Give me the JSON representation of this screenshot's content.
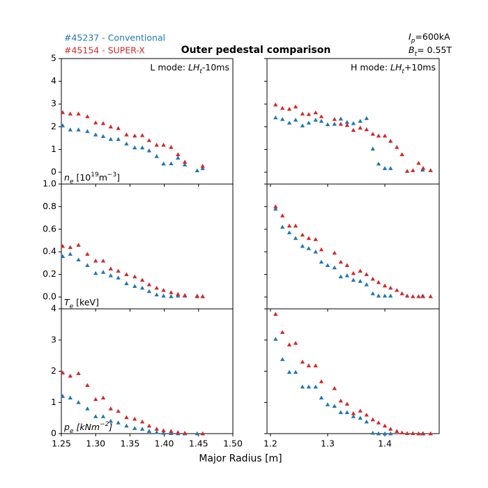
{
  "title": "Outer pedestal comparison",
  "xlabel": "Major Radius [m]",
  "plasma_current": [
    "I",
    "p",
    "=600kA"
  ],
  "toroidal_field": [
    "B",
    "t",
    "= 0.55T"
  ],
  "chart_data": [
    {
      "type": "scatter",
      "xlim": [
        1.25,
        1.5
      ],
      "ylim": [
        -0.52,
        5
      ],
      "yticks": [
        0,
        1,
        2,
        3,
        4,
        5
      ],
      "annotation": [
        "L mode: ",
        "LH",
        "t",
        "-10ms"
      ],
      "ylabel": [
        "n",
        "e",
        " [10",
        "19",
        "m",
        "−3",
        "]"
      ],
      "series": [
        {
          "name": "#45237 - Conventional",
          "color": "#1f77b4",
          "x": [
            1.252,
            1.263,
            1.275,
            1.288,
            1.3,
            1.311,
            1.322,
            1.333,
            1.345,
            1.357,
            1.368,
            1.378,
            1.389,
            1.399,
            1.41,
            1.42,
            1.43,
            1.448,
            1.456
          ],
          "values": [
            2.05,
            1.87,
            1.87,
            1.8,
            1.65,
            1.58,
            1.45,
            1.45,
            1.25,
            1.08,
            1.08,
            0.95,
            0.7,
            0.37,
            0.38,
            0.63,
            0.33,
            0.07,
            0.17
          ]
        },
        {
          "name": "#45154 - SUPER-X",
          "color": "#d62728",
          "x": [
            1.252,
            1.263,
            1.275,
            1.288,
            1.3,
            1.311,
            1.322,
            1.333,
            1.345,
            1.357,
            1.368,
            1.378,
            1.389,
            1.399,
            1.41,
            1.42,
            1.43,
            1.456
          ],
          "values": [
            2.63,
            2.57,
            2.57,
            2.45,
            2.18,
            2.15,
            2.0,
            1.93,
            1.65,
            1.6,
            1.62,
            1.4,
            1.2,
            1.2,
            1.1,
            0.78,
            0.45,
            0.27
          ]
        }
      ]
    },
    {
      "type": "scatter",
      "xlim": [
        1.194,
        1.495
      ],
      "ylim": [
        -0.52,
        5
      ],
      "annotation": [
        "H mode: ",
        "LH",
        "t",
        "+10ms"
      ],
      "series": [
        {
          "color": "#1f77b4",
          "x": [
            1.209,
            1.221,
            1.233,
            1.244,
            1.256,
            1.267,
            1.279,
            1.289,
            1.3,
            1.312,
            1.323,
            1.334,
            1.345,
            1.357,
            1.368,
            1.379,
            1.389,
            1.4,
            1.41,
            1.466
          ],
          "values": [
            2.4,
            2.33,
            2.17,
            2.3,
            2.05,
            2.17,
            2.3,
            2.25,
            2.1,
            2.12,
            2.35,
            2.2,
            2.15,
            2.25,
            2.37,
            1.03,
            0.37,
            0.17,
            0.17,
            0.1
          ]
        },
        {
          "color": "#d62728",
          "x": [
            1.209,
            1.221,
            1.233,
            1.244,
            1.256,
            1.267,
            1.279,
            1.289,
            1.312,
            1.323,
            1.334,
            1.345,
            1.357,
            1.368,
            1.379,
            1.389,
            1.4,
            1.41,
            1.421,
            1.43,
            1.439,
            1.449,
            1.459,
            1.467,
            1.48
          ],
          "values": [
            2.97,
            2.82,
            2.78,
            2.88,
            2.57,
            2.55,
            2.62,
            2.45,
            2.33,
            2.12,
            2.07,
            1.85,
            1.95,
            1.88,
            1.68,
            1.6,
            1.6,
            1.37,
            1.1,
            0.78,
            0.05,
            0.08,
            0.4,
            0.18,
            0.08
          ]
        }
      ]
    },
    {
      "type": "scatter",
      "xlim": [
        1.25,
        1.5
      ],
      "ylim": [
        -0.105,
        1.0
      ],
      "yticks": [
        {
          "value": 0,
          "label": "0.0"
        },
        0.2,
        0.4,
        0.6,
        0.8,
        {
          "value": 1,
          "label": "1.0"
        }
      ],
      "ylabel": [
        "T",
        "e",
        " [keV]"
      ],
      "series": [
        {
          "color": "#1f77b4",
          "x": [
            1.252,
            1.263,
            1.275,
            1.288,
            1.3,
            1.311,
            1.322,
            1.333,
            1.345,
            1.357,
            1.368,
            1.378,
            1.389,
            1.399,
            1.41,
            1.42,
            1.43,
            1.448,
            1.456
          ],
          "values": [
            0.36,
            0.38,
            0.33,
            0.28,
            0.21,
            0.22,
            0.19,
            0.17,
            0.12,
            0.095,
            0.08,
            0.05,
            0.02,
            0.01,
            0.005,
            0.01,
            0.01,
            0.01,
            0.005
          ]
        },
        {
          "color": "#d62728",
          "x": [
            1.252,
            1.263,
            1.275,
            1.288,
            1.3,
            1.311,
            1.322,
            1.333,
            1.345,
            1.357,
            1.368,
            1.378,
            1.389,
            1.399,
            1.41,
            1.42,
            1.43,
            1.448,
            1.456
          ],
          "values": [
            0.45,
            0.44,
            0.46,
            0.38,
            0.32,
            0.32,
            0.25,
            0.23,
            0.2,
            0.18,
            0.15,
            0.11,
            0.08,
            0.06,
            0.04,
            0.025,
            0.015,
            0.005,
            0.005
          ]
        }
      ]
    },
    {
      "type": "scatter",
      "xlim": [
        1.194,
        1.495
      ],
      "ylim": [
        -0.105,
        1.0
      ],
      "series": [
        {
          "color": "#1f77b4",
          "x": [
            1.209,
            1.221,
            1.233,
            1.244,
            1.256,
            1.267,
            1.279,
            1.289,
            1.3,
            1.312,
            1.323,
            1.334,
            1.345,
            1.357,
            1.368,
            1.379,
            1.389,
            1.4,
            1.41,
            1.466
          ],
          "values": [
            0.78,
            0.62,
            0.57,
            0.52,
            0.45,
            0.43,
            0.4,
            0.31,
            0.28,
            0.26,
            0.18,
            0.19,
            0.15,
            0.14,
            0.11,
            0.03,
            0.01,
            0.01,
            0.01,
            0.01
          ]
        },
        {
          "color": "#d62728",
          "x": [
            1.209,
            1.221,
            1.233,
            1.244,
            1.256,
            1.267,
            1.279,
            1.289,
            1.312,
            1.323,
            1.334,
            1.345,
            1.357,
            1.368,
            1.379,
            1.389,
            1.4,
            1.41,
            1.421,
            1.43,
            1.439,
            1.449,
            1.459,
            1.467,
            1.48
          ],
          "values": [
            0.8,
            0.72,
            0.63,
            0.63,
            0.55,
            0.52,
            0.51,
            0.42,
            0.39,
            0.31,
            0.28,
            0.21,
            0.23,
            0.2,
            0.16,
            0.13,
            0.1,
            0.08,
            0.06,
            0.03,
            0.01,
            0.005,
            0.005,
            0.005,
            0.005
          ]
        }
      ]
    },
    {
      "type": "scatter",
      "xlim": [
        1.25,
        1.5
      ],
      "ylim": [
        0,
        4
      ],
      "xticks": [
        1.25,
        {
          "value": 1.3,
          "label": "1.30"
        },
        1.35,
        {
          "value": 1.4,
          "label": "1.40"
        },
        1.45,
        {
          "value": 1.5,
          "label": "1.50"
        }
      ],
      "yticks": [
        0,
        1,
        2,
        3,
        4
      ],
      "ylabel": [
        "p",
        "e",
        " [kNm",
        "−2",
        "]"
      ],
      "series": [
        {
          "color": "#1f77b4",
          "x": [
            1.252,
            1.263,
            1.275,
            1.288,
            1.3,
            1.311,
            1.322,
            1.333,
            1.345,
            1.357,
            1.368,
            1.378,
            1.389,
            1.399,
            1.41,
            1.42,
            1.43,
            1.448,
            1.456
          ],
          "values": [
            1.2,
            1.15,
            1.0,
            0.8,
            0.55,
            0.55,
            0.4,
            0.35,
            0.25,
            0.17,
            0.15,
            0.08,
            0.04,
            0.02,
            0.01,
            0,
            0,
            0,
            0
          ]
        },
        {
          "color": "#d62728",
          "x": [
            1.252,
            1.263,
            1.275,
            1.288,
            1.3,
            1.311,
            1.322,
            1.333,
            1.345,
            1.357,
            1.368,
            1.378,
            1.389,
            1.399,
            1.41,
            1.42,
            1.43,
            1.456
          ],
          "values": [
            1.95,
            1.85,
            1.93,
            1.55,
            1.1,
            1.15,
            0.8,
            0.72,
            0.52,
            0.47,
            0.38,
            0.25,
            0.15,
            0.1,
            0.08,
            0.04,
            0.02,
            0
          ]
        }
      ]
    },
    {
      "type": "scatter",
      "xlim": [
        1.194,
        1.495
      ],
      "ylim": [
        0,
        4
      ],
      "xticks": [
        1.2,
        1.3,
        1.4
      ],
      "series": [
        {
          "color": "#1f77b4",
          "x": [
            1.209,
            1.221,
            1.233,
            1.244,
            1.256,
            1.267,
            1.279,
            1.289,
            1.3,
            1.312,
            1.323,
            1.334,
            1.345,
            1.357,
            1.368,
            1.379,
            1.389,
            1.4,
            1.41,
            1.466
          ],
          "values": [
            3.03,
            2.38,
            1.97,
            1.97,
            1.5,
            1.5,
            1.5,
            1.15,
            0.93,
            0.88,
            0.68,
            0.68,
            0.55,
            0.5,
            0.38,
            0.02,
            0,
            0,
            0,
            0
          ]
        },
        {
          "color": "#d62728",
          "x": [
            1.209,
            1.221,
            1.233,
            1.244,
            1.256,
            1.267,
            1.279,
            1.289,
            1.312,
            1.323,
            1.334,
            1.345,
            1.357,
            1.368,
            1.379,
            1.389,
            1.4,
            1.41,
            1.421,
            1.43,
            1.439,
            1.449,
            1.459,
            1.467,
            1.48
          ],
          "values": [
            3.83,
            3.25,
            2.85,
            2.9,
            2.3,
            2.18,
            2.18,
            1.67,
            1.45,
            1.05,
            0.95,
            0.65,
            0.73,
            0.6,
            0.45,
            0.35,
            0.25,
            0.15,
            0.08,
            0.03,
            0.01,
            0.01,
            0,
            0,
            0
          ]
        }
      ]
    }
  ]
}
